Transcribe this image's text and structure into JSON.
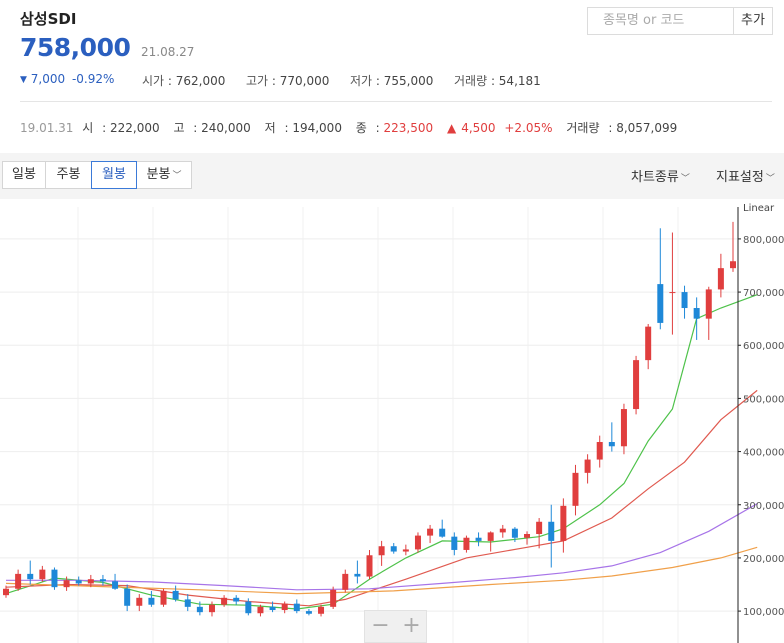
{
  "stock": {
    "name": "삼성SDI",
    "price": "758,000",
    "date": "21.08.27",
    "change_arrow": "▼",
    "change_amount": "7,000",
    "change_pct": "-0.92%"
  },
  "stats": {
    "open_label": "시가",
    "open": "762,000",
    "high_label": "고가",
    "high": "770,000",
    "low_label": "저가",
    "low": "755,000",
    "volume_label": "거래량",
    "volume": "54,181"
  },
  "search": {
    "placeholder": "종목명 or 코드",
    "add_label": "추가"
  },
  "history": {
    "date": "19.01.31",
    "open_label": "시",
    "open": "222,000",
    "high_label": "고",
    "high": "240,000",
    "low_label": "저",
    "low": "194,000",
    "close_label": "종",
    "close": "223,500",
    "change_arrow": "▲",
    "change_amount": "4,500",
    "change_pct": "+2.05%",
    "volume_label": "거래량",
    "volume": "8,057,099"
  },
  "toolbar": {
    "tabs": [
      {
        "label": "일봉",
        "active": false
      },
      {
        "label": "주봉",
        "active": false
      },
      {
        "label": "월봉",
        "active": true
      },
      {
        "label": "분봉",
        "active": false
      }
    ],
    "chevron": "﹀",
    "chart_type_label": "차트종류",
    "indicator_label": "지표설정"
  },
  "zoom": {
    "minus": "−",
    "plus": "+"
  },
  "colors": {
    "up": "#e03e3e",
    "down": "#1e88d8",
    "ma5": "#4ec24a",
    "ma20": "#e05a50",
    "ma60": "#a774e8",
    "ma120": "#f0a04a"
  },
  "chart_data": {
    "type": "candlestick",
    "scale_label": "Linear",
    "y_ticks": [
      "800,000",
      "700,000",
      "600,000",
      "500,000",
      "400,000",
      "300,000",
      "200,000",
      "100,000"
    ],
    "ylim": [
      40000,
      860000
    ],
    "candles": [
      [
        130000,
        148000,
        125000,
        142000
      ],
      [
        142000,
        178000,
        138000,
        170000
      ],
      [
        170000,
        195000,
        150000,
        160000
      ],
      [
        160000,
        185000,
        155000,
        178000
      ],
      [
        178000,
        182000,
        140000,
        145000
      ],
      [
        145000,
        165000,
        138000,
        158000
      ],
      [
        158000,
        165000,
        148000,
        152000
      ],
      [
        152000,
        168000,
        145000,
        160000
      ],
      [
        160000,
        168000,
        148000,
        156000
      ],
      [
        156000,
        170000,
        140000,
        142000
      ],
      [
        142000,
        150000,
        100000,
        110000
      ],
      [
        110000,
        132000,
        100000,
        125000
      ],
      [
        125000,
        138000,
        108000,
        112000
      ],
      [
        112000,
        142000,
        108000,
        138000
      ],
      [
        138000,
        148000,
        118000,
        122000
      ],
      [
        122000,
        132000,
        100000,
        108000
      ],
      [
        108000,
        118000,
        92000,
        98000
      ],
      [
        98000,
        118000,
        90000,
        112000
      ],
      [
        112000,
        130000,
        108000,
        125000
      ],
      [
        125000,
        130000,
        112000,
        118000
      ],
      [
        118000,
        124000,
        92000,
        96000
      ],
      [
        96000,
        112000,
        90000,
        108000
      ],
      [
        108000,
        118000,
        98000,
        102000
      ],
      [
        102000,
        118000,
        96000,
        114000
      ],
      [
        114000,
        122000,
        96000,
        100000
      ],
      [
        100000,
        104000,
        92000,
        95000
      ],
      [
        95000,
        112000,
        90000,
        108000
      ],
      [
        108000,
        146000,
        104000,
        140000
      ],
      [
        140000,
        178000,
        135000,
        170000
      ],
      [
        170000,
        195000,
        152000,
        165000
      ],
      [
        165000,
        215000,
        160000,
        205000
      ],
      [
        205000,
        232000,
        185000,
        222000
      ],
      [
        222000,
        228000,
        208000,
        212000
      ],
      [
        212000,
        225000,
        205000,
        216000
      ],
      [
        216000,
        248000,
        210000,
        242000
      ],
      [
        242000,
        262000,
        228000,
        255000
      ],
      [
        255000,
        272000,
        238000,
        240000
      ],
      [
        240000,
        248000,
        205000,
        215000
      ],
      [
        215000,
        242000,
        210000,
        238000
      ],
      [
        238000,
        248000,
        222000,
        232000
      ],
      [
        232000,
        250000,
        212000,
        248000
      ],
      [
        248000,
        262000,
        238000,
        255000
      ],
      [
        255000,
        258000,
        230000,
        238000
      ],
      [
        238000,
        250000,
        225000,
        245000
      ],
      [
        245000,
        275000,
        218000,
        268000
      ],
      [
        268000,
        300000,
        182000,
        232000
      ],
      [
        232000,
        312000,
        210000,
        298000
      ],
      [
        298000,
        375000,
        280000,
        360000
      ],
      [
        360000,
        395000,
        340000,
        385000
      ],
      [
        385000,
        430000,
        370000,
        418000
      ],
      [
        418000,
        455000,
        400000,
        410000
      ],
      [
        410000,
        490000,
        395000,
        480000
      ],
      [
        480000,
        580000,
        470000,
        572000
      ],
      [
        572000,
        640000,
        555000,
        635000
      ],
      [
        715000,
        820000,
        630000,
        642000
      ],
      [
        700000,
        812000,
        620000,
        700000
      ],
      [
        700000,
        712000,
        650000,
        670000
      ],
      [
        670000,
        690000,
        610000,
        650000
      ],
      [
        650000,
        710000,
        610000,
        705000
      ],
      [
        705000,
        772000,
        690000,
        745000
      ],
      [
        745000,
        832000,
        738000,
        758000
      ]
    ],
    "ma_series": [
      {
        "name": "MA5",
        "values": [
          [
            0,
            133000
          ],
          [
            4,
            162000
          ],
          [
            8,
            154000
          ],
          [
            12,
            130000
          ],
          [
            16,
            113000
          ],
          [
            20,
            111000
          ],
          [
            24,
            104000
          ],
          [
            27,
            113000
          ],
          [
            30,
            160000
          ],
          [
            33,
            200000
          ],
          [
            36,
            232000
          ],
          [
            40,
            230000
          ],
          [
            44,
            240000
          ],
          [
            46,
            255000
          ],
          [
            49,
            300000
          ],
          [
            51,
            340000
          ],
          [
            53,
            420000
          ],
          [
            55,
            480000
          ],
          [
            57,
            650000
          ],
          [
            59,
            670000
          ],
          [
            62,
            695000
          ]
        ]
      },
      {
        "name": "MA20",
        "values": [
          [
            0,
            145000
          ],
          [
            5,
            150000
          ],
          [
            10,
            148000
          ],
          [
            15,
            130000
          ],
          [
            20,
            118000
          ],
          [
            25,
            110000
          ],
          [
            28,
            122000
          ],
          [
            33,
            160000
          ],
          [
            38,
            200000
          ],
          [
            43,
            220000
          ],
          [
            46,
            232000
          ],
          [
            50,
            275000
          ],
          [
            53,
            330000
          ],
          [
            56,
            380000
          ],
          [
            59,
            460000
          ],
          [
            62,
            515000
          ]
        ]
      },
      {
        "name": "MA60",
        "values": [
          [
            0,
            158000
          ],
          [
            6,
            158000
          ],
          [
            12,
            155000
          ],
          [
            18,
            148000
          ],
          [
            24,
            140000
          ],
          [
            30,
            142000
          ],
          [
            36,
            152000
          ],
          [
            42,
            163000
          ],
          [
            46,
            172000
          ],
          [
            50,
            185000
          ],
          [
            54,
            210000
          ],
          [
            58,
            250000
          ],
          [
            62,
            302000
          ]
        ]
      },
      {
        "name": "MA120",
        "values": [
          [
            0,
            152000
          ],
          [
            8,
            146000
          ],
          [
            16,
            140000
          ],
          [
            24,
            133000
          ],
          [
            32,
            138000
          ],
          [
            40,
            150000
          ],
          [
            46,
            158000
          ],
          [
            50,
            166000
          ],
          [
            55,
            182000
          ],
          [
            59,
            200000
          ],
          [
            62,
            220000
          ]
        ]
      }
    ]
  }
}
